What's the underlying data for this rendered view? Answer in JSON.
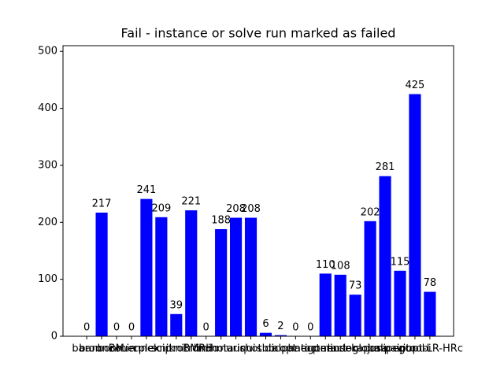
{
  "chart_data": {
    "type": "bar",
    "title": "Fail - instance or solve run marked as failed",
    "categories": [
      "baron",
      "baronBM",
      "bonmin",
      "couenne",
      "cplex",
      "scip",
      "knitroBM",
      "knitroRH",
      "lindo",
      "minotaur",
      "muriqui",
      "shot",
      "sbb",
      "dicopt",
      "alphaecp",
      "antigone",
      "octeract",
      "mosek",
      "lindoglobal",
      "raposa",
      "juniper",
      "pavito",
      "gurobi",
      "ipopt-LR-HRc"
    ],
    "values": [
      0,
      217,
      0,
      0,
      241,
      209,
      39,
      221,
      0,
      188,
      208,
      208,
      6,
      2,
      0,
      0,
      110,
      108,
      73,
      202,
      281,
      115,
      425,
      78
    ],
    "color": "#0000ff",
    "ylim": [
      0,
      510
    ],
    "yticks": [
      0,
      100,
      200,
      300,
      400,
      500
    ]
  }
}
